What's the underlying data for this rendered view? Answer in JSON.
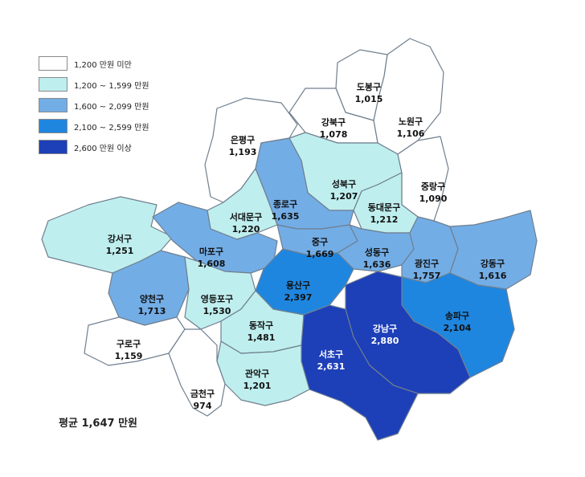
{
  "legend": [
    {
      "label": "1,200 만원 미만",
      "color": "#ffffff"
    },
    {
      "label": "1,200 ~ 1,599 만원",
      "color": "#bfeeee"
    },
    {
      "label": "1,600 ~ 2,099 만원",
      "color": "#73ade6"
    },
    {
      "label": "2,100 ~ 2,599 만원",
      "color": "#1f86e0"
    },
    {
      "label": "2,600 만원 이상",
      "color": "#1d3fb8"
    }
  ],
  "average_text": "평균 1,647 만원",
  "districts": [
    {
      "id": "dobong",
      "name": "도봉구",
      "value": "1,015"
    },
    {
      "id": "nowon",
      "name": "노원구",
      "value": "1,106"
    },
    {
      "id": "gangbuk",
      "name": "강북구",
      "value": "1,078"
    },
    {
      "id": "eunpyeong",
      "name": "은평구",
      "value": "1,193"
    },
    {
      "id": "seongbuk",
      "name": "성북구",
      "value": "1,207"
    },
    {
      "id": "jungnang",
      "name": "중랑구",
      "value": "1,090"
    },
    {
      "id": "jongno",
      "name": "종로구",
      "value": "1,635"
    },
    {
      "id": "seodaemun",
      "name": "서대문구",
      "value": "1,220"
    },
    {
      "id": "dongdaemun",
      "name": "동대문구",
      "value": "1,212"
    },
    {
      "id": "gangseo",
      "name": "강서구",
      "value": "1,251"
    },
    {
      "id": "mapo",
      "name": "마포구",
      "value": "1,608"
    },
    {
      "id": "junggu",
      "name": "중구",
      "value": "1,669"
    },
    {
      "id": "seongdong",
      "name": "성동구",
      "value": "1,636"
    },
    {
      "id": "gwangjin",
      "name": "광진구",
      "value": "1,757"
    },
    {
      "id": "gangdong",
      "name": "강동구",
      "value": "1,616"
    },
    {
      "id": "yangcheon",
      "name": "양천구",
      "value": "1,713"
    },
    {
      "id": "yongsan",
      "name": "용산구",
      "value": "2,397"
    },
    {
      "id": "yeongdeungpo",
      "name": "영등포구",
      "value": "1,530"
    },
    {
      "id": "songpa",
      "name": "송파구",
      "value": "2,104"
    },
    {
      "id": "gangnam",
      "name": "강남구",
      "value": "2,880"
    },
    {
      "id": "guro",
      "name": "구로구",
      "value": "1,159"
    },
    {
      "id": "dongjak",
      "name": "동작구",
      "value": "1,481"
    },
    {
      "id": "seocho",
      "name": "서초구",
      "value": "2,631"
    },
    {
      "id": "gwanak",
      "name": "관악구",
      "value": "1,201"
    },
    {
      "id": "geumcheon",
      "name": "금천구",
      "value": "974"
    }
  ]
}
